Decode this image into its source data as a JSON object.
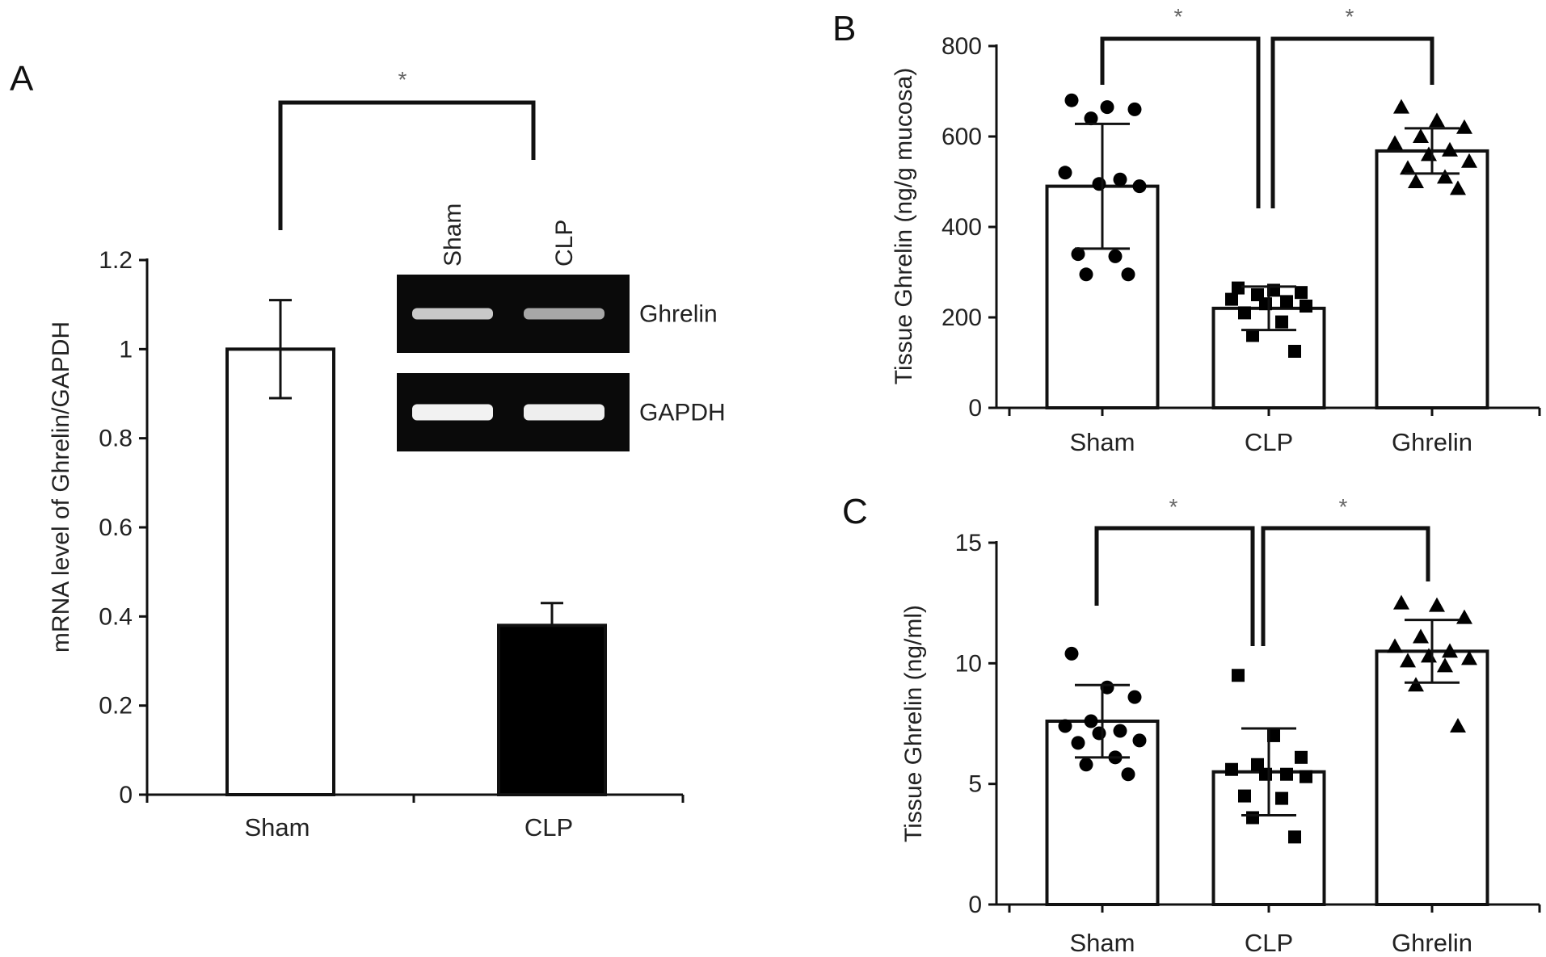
{
  "chart_data": [
    {
      "panel": "A",
      "type": "bar",
      "categories": [
        "Sham",
        "CLP"
      ],
      "values": [
        1.0,
        0.38
      ],
      "errors": [
        0.11,
        0.05
      ],
      "bar_colors": [
        "#ffffff",
        "#000000"
      ],
      "ylabel": "mRNA level of Ghrelin/GAPDH",
      "xlabel": "",
      "ylim": [
        0,
        1.2
      ],
      "yticks": [
        "0",
        "0.2",
        "0.4",
        "0.6",
        "0.8",
        "1",
        "1.2"
      ],
      "significance": [
        {
          "groups": [
            "Sham",
            "CLP"
          ],
          "label": "*"
        }
      ],
      "inset_blot": {
        "lanes": [
          "Sham",
          "CLP"
        ],
        "bands": [
          "Ghrelin",
          "GAPDH"
        ]
      }
    },
    {
      "panel": "B",
      "type": "bar",
      "categories": [
        "Sham",
        "CLP",
        "Ghrelin"
      ],
      "values": [
        490,
        220,
        568
      ],
      "errors": [
        138,
        48,
        50
      ],
      "markers": [
        "circle",
        "square",
        "triangle"
      ],
      "points": [
        [
          680,
          665,
          660,
          640,
          520,
          505,
          495,
          490,
          340,
          335,
          295,
          295
        ],
        [
          265,
          260,
          255,
          250,
          240,
          235,
          230,
          225,
          210,
          190,
          160,
          125
        ],
        [
          665,
          635,
          620,
          600,
          585,
          570,
          560,
          545,
          530,
          510,
          500,
          485
        ]
      ],
      "ylabel": "Tissue Ghrelin (ng/g mucosa)",
      "xlabel": "",
      "ylim": [
        0,
        800
      ],
      "yticks": [
        "0",
        "200",
        "400",
        "600",
        "800"
      ],
      "significance": [
        {
          "groups": [
            "Sham",
            "CLP"
          ],
          "label": "*"
        },
        {
          "groups": [
            "CLP",
            "Ghrelin"
          ],
          "label": "*"
        }
      ]
    },
    {
      "panel": "C",
      "type": "bar",
      "categories": [
        "Sham",
        "CLP",
        "Ghrelin"
      ],
      "values": [
        7.6,
        5.5,
        10.5
      ],
      "errors": [
        1.5,
        1.8,
        1.3
      ],
      "markers": [
        "circle",
        "square",
        "triangle"
      ],
      "points": [
        [
          10.4,
          9.0,
          8.6,
          7.6,
          7.4,
          7.2,
          7.1,
          6.8,
          6.7,
          6.1,
          5.8,
          5.4
        ],
        [
          9.5,
          7.0,
          6.1,
          5.8,
          5.6,
          5.4,
          5.4,
          5.3,
          4.5,
          4.4,
          3.6,
          2.8
        ],
        [
          12.5,
          12.4,
          11.9,
          11.1,
          10.7,
          10.5,
          10.3,
          10.2,
          10.1,
          9.9,
          9.1,
          7.4
        ]
      ],
      "ylabel": "Tissue Ghrelin (ng/ml)",
      "xlabel": "",
      "ylim": [
        0,
        15
      ],
      "yticks": [
        "0",
        "5",
        "10",
        "15"
      ],
      "significance": [
        {
          "groups": [
            "Sham",
            "CLP"
          ],
          "label": "*"
        },
        {
          "groups": [
            "CLP",
            "Ghrelin"
          ],
          "label": "*"
        }
      ]
    }
  ]
}
